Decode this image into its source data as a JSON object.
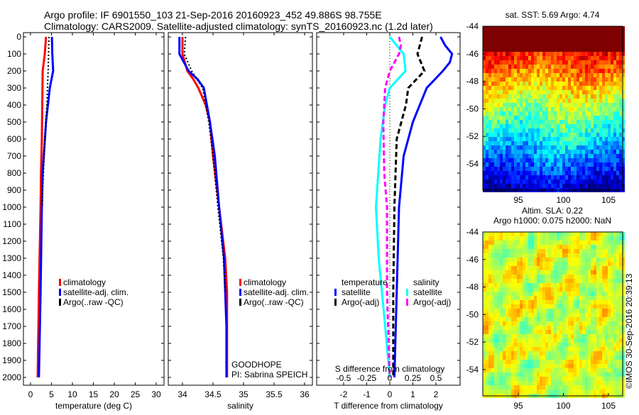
{
  "title_line1": "Argo profile: IF 6901550_103 21-Sep-2016 20160923_452 49.886S 98.755E",
  "title_line2": "Climatology: CARS2009. Satellite-adjusted climatology: synTS_20160923.nc (1.2d later)",
  "colors": {
    "climatology": "#ff0000",
    "satellite": "#0000ff",
    "argo": "#000000",
    "s_satellite": "#00ffff",
    "s_argo": "#ff00ff"
  },
  "chart_data": [
    {
      "type": "line",
      "id": "temperature",
      "xlabel": "temperature (deg C)",
      "ylabel": "",
      "xlim": [
        -2,
        31
      ],
      "ylim": [
        2050,
        0
      ],
      "xticks": [
        "0",
        "5",
        "10",
        "15",
        "20",
        "25",
        "30"
      ],
      "yticks": [
        "0",
        "100",
        "200",
        "300",
        "400",
        "500",
        "600",
        "700",
        "800",
        "900",
        "1000",
        "1100",
        "1200",
        "1300",
        "1400",
        "1500",
        "1600",
        "1700",
        "1800",
        "1900",
        "2000"
      ],
      "legend": [
        "climatology",
        "satellite-adj. clim.",
        "Argo(..raw -QC)"
      ],
      "series": [
        {
          "name": "climatology",
          "depth": [
            0,
            100,
            200,
            400,
            600,
            800,
            1000,
            1500,
            2000
          ],
          "values": [
            3.7,
            3.4,
            2.9,
            2.8,
            2.7,
            2.5,
            2.4,
            2.0,
            1.7
          ]
        },
        {
          "name": "satellite-adj. clim.",
          "depth": [
            0,
            100,
            200,
            300,
            500,
            800,
            1000,
            1500,
            2000
          ],
          "values": [
            5.1,
            5.2,
            5.4,
            4.6,
            3.7,
            2.9,
            2.7,
            2.4,
            2.0
          ]
        },
        {
          "name": "Argo(..raw -QC)",
          "depth": [
            0,
            100,
            200,
            400,
            600,
            900,
            1000
          ],
          "values": [
            4.4,
            4.3,
            4.2,
            3.9,
            3.4,
            2.9,
            2.8
          ]
        }
      ]
    },
    {
      "type": "line",
      "id": "salinity",
      "xlabel": "salinity",
      "xlim": [
        33.77,
        36.12
      ],
      "ylim": [
        2050,
        0
      ],
      "xticks": [
        "34",
        "34.5",
        "35",
        "35.5",
        "36"
      ],
      "legend": [
        "climatology",
        "satellite-adj. clim.",
        "Argo(..raw -QC)"
      ],
      "annotations": [
        "GOODHOPE",
        "PI: Sabrina SPEICH"
      ],
      "series": [
        {
          "name": "climatology",
          "depth": [
            0,
            100,
            200,
            250,
            300,
            400,
            500,
            700,
            1000,
            1300,
            1500,
            2000
          ],
          "values": [
            34.0,
            34.0,
            34.08,
            34.18,
            34.26,
            34.38,
            34.45,
            34.5,
            34.6,
            34.7,
            34.73,
            34.73
          ]
        },
        {
          "name": "satellite-adj. clim.",
          "depth": [
            0,
            100,
            200,
            250,
            300,
            500,
            700,
            1000,
            1300,
            1700,
            2000
          ],
          "values": [
            33.95,
            33.95,
            34.1,
            34.25,
            34.35,
            34.45,
            34.53,
            34.6,
            34.68,
            34.72,
            34.72
          ]
        },
        {
          "name": "Argo(..raw -QC)",
          "depth": [
            0,
            100,
            200,
            300,
            500,
            700,
            1000,
            1300,
            1500
          ],
          "values": [
            34.05,
            34.03,
            34.15,
            34.33,
            34.43,
            34.5,
            34.58,
            34.67,
            34.7
          ]
        }
      ]
    },
    {
      "type": "line",
      "id": "difference",
      "xlabel": "T difference from climatology",
      "x2label": "S difference from climatology",
      "xlim": [
        -3.2,
        3.1
      ],
      "ylim": [
        2050,
        0
      ],
      "xticks": [
        "-2",
        "-1",
        "0",
        "1",
        "2"
      ],
      "x2ticks": [
        "-0.5",
        "-0.25",
        "0",
        "0.25",
        "0.5"
      ],
      "legend_groups": {
        "temperature": [
          "satellite",
          "Argo(-adj)"
        ],
        "salinity": [
          "satellite",
          "Argo(-adj)"
        ]
      },
      "series": [
        {
          "name": "T satellite",
          "units": "T",
          "depth": [
            0,
            50,
            100,
            150,
            200,
            300,
            500,
            700,
            1000,
            1500,
            2000
          ],
          "values": [
            2.2,
            2.4,
            2.7,
            2.6,
            2.3,
            1.6,
            1.0,
            0.6,
            0.4,
            0.3,
            0.2
          ]
        },
        {
          "name": "T Argo(-adj)",
          "units": "T",
          "depth": [
            0,
            100,
            200,
            300,
            400,
            500,
            600,
            800,
            1000,
            1500,
            2000
          ],
          "values": [
            1.4,
            1.2,
            1.5,
            0.8,
            0.7,
            0.5,
            0.3,
            0.25,
            0.2,
            0.15,
            0.15
          ]
        },
        {
          "name": "S satellite",
          "units": "S",
          "depth": [
            0,
            100,
            200,
            300,
            400,
            600,
            1000,
            1300,
            1700,
            2000
          ],
          "values": [
            0.0,
            0.15,
            0.17,
            0.0,
            -0.05,
            -0.1,
            -0.15,
            -0.12,
            -0.05,
            0.0
          ]
        },
        {
          "name": "S Argo(-adj)",
          "units": "S",
          "depth": [
            0,
            50,
            100,
            200,
            300,
            500,
            800,
            1000,
            1500,
            2000
          ],
          "values": [
            0.1,
            0.12,
            0.1,
            0.0,
            -0.05,
            -0.07,
            -0.06,
            -0.03,
            -0.03,
            0.0
          ]
        }
      ]
    },
    {
      "type": "heatmap",
      "id": "sst-map",
      "title": "sat. SST: 5.69 Argo: 4.74",
      "xlim": [
        91,
        106.5
      ],
      "ylim": [
        -55.8,
        -44
      ],
      "xticks": [
        "95",
        "100",
        "105"
      ],
      "yticks": [
        "-44",
        "-46",
        "-48",
        "-50",
        "-52",
        "-54"
      ]
    },
    {
      "type": "heatmap",
      "id": "sla-map",
      "title": "Altim. SLA: 0.22",
      "subtitle": "Argo h1000: 0.075 h2000: NaN",
      "xlim": [
        91,
        106.5
      ],
      "ylim": [
        -55.8,
        -44
      ],
      "xticks": [
        "95",
        "100",
        "105"
      ],
      "yticks": [
        "-44",
        "-46",
        "-48",
        "-50",
        "-52",
        "-54"
      ]
    }
  ],
  "copyright": "©IMOS 30-Sep-2016 20:39:13"
}
